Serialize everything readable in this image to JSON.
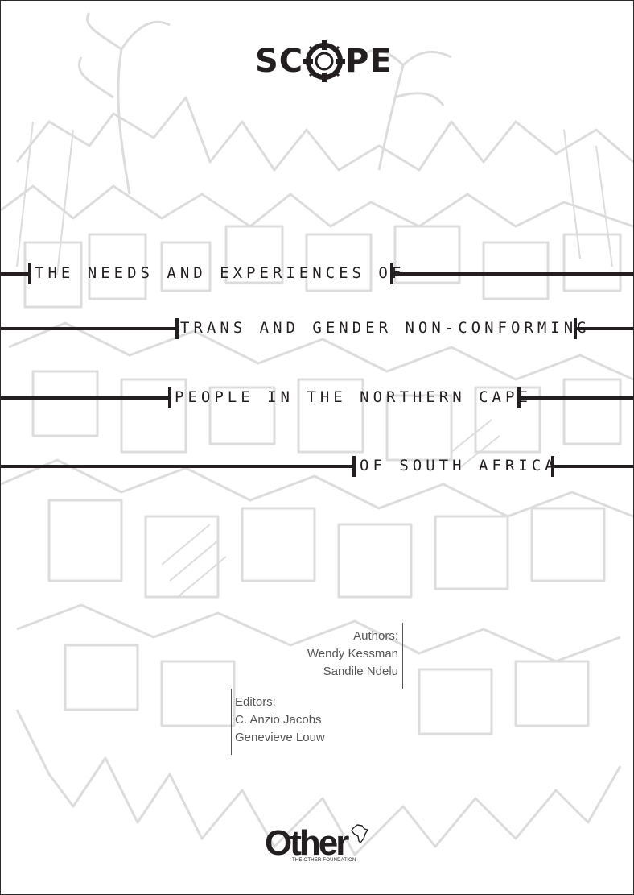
{
  "logo": {
    "left": "SC",
    "right": "PE"
  },
  "title_lines": [
    "THE NEEDS AND EXPERIENCES OF",
    "TRANS AND GENDER NON-CONFORMING",
    "PEOPLE IN THE NORTHERN CAPE",
    "OF SOUTH AFRICA"
  ],
  "authors": {
    "label": "Authors:",
    "names": [
      "Wendy Kessman",
      "Sandile Ndelu"
    ]
  },
  "editors": {
    "label": "Editors:",
    "names": [
      "C. Anzio Jacobs",
      "Genevieve Louw"
    ]
  },
  "footer": {
    "logo_text": "Other",
    "logo_subtitle": "THE OTHER FOUNDATION"
  },
  "colors": {
    "ink": "#231f20",
    "art": "#d9d9d9",
    "credit_text": "#555555"
  }
}
